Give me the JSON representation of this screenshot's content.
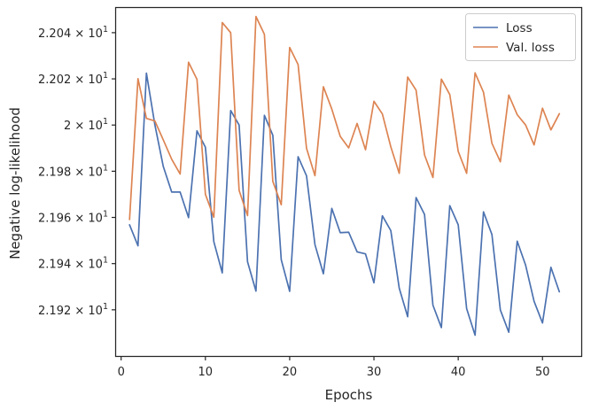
{
  "chart_data": {
    "type": "line",
    "xlabel": "Epochs",
    "ylabel": "Negative log-likelihood",
    "xlim": [
      -0.6,
      54.6
    ],
    "ylim": [
      21.9,
      22.0507
    ],
    "x_ticks": [
      0,
      10,
      20,
      30,
      40,
      50
    ],
    "x_tick_labels": [
      "0",
      "10",
      "20",
      "30",
      "40",
      "50"
    ],
    "y_ticks": [
      21.92,
      21.94,
      21.96,
      21.98,
      22.0,
      22.02,
      22.04
    ],
    "y_tick_labels": [
      {
        "mantissa": "2.192",
        "times": "×",
        "base": "10",
        "exponent": "1"
      },
      {
        "mantissa": "2.194",
        "times": "×",
        "base": "10",
        "exponent": "1"
      },
      {
        "mantissa": "2.196",
        "times": "×",
        "base": "10",
        "exponent": "1"
      },
      {
        "mantissa": "2.198",
        "times": "×",
        "base": "10",
        "exponent": "1"
      },
      {
        "mantissa": "2",
        "times": "×",
        "base": "10",
        "exponent": "1"
      },
      {
        "mantissa": "2.202",
        "times": "×",
        "base": "10",
        "exponent": "1"
      },
      {
        "mantissa": "2.204",
        "times": "×",
        "base": "10",
        "exponent": "1"
      }
    ],
    "legend_position": "top-right",
    "grid": false,
    "x": [
      1,
      2,
      3,
      4,
      5,
      6,
      7,
      8,
      9,
      10,
      11,
      12,
      13,
      14,
      15,
      16,
      17,
      18,
      19,
      20,
      21,
      22,
      23,
      24,
      25,
      26,
      27,
      28,
      29,
      30,
      31,
      32,
      33,
      34,
      35,
      36,
      37,
      38,
      39,
      40,
      41,
      42,
      43,
      44,
      45,
      46,
      47,
      48,
      49,
      50,
      51,
      52
    ],
    "series": [
      {
        "name": "Loss",
        "color": "#4c72b0",
        "values": [
          21.9568,
          21.9477,
          22.0225,
          22.0002,
          21.9821,
          21.971,
          21.971,
          21.9599,
          21.9975,
          21.9904,
          21.9495,
          21.936,
          22.0063,
          22.0,
          21.9408,
          21.9281,
          22.0042,
          21.9956,
          21.9417,
          21.928,
          21.9863,
          21.978,
          21.9482,
          21.9356,
          21.9639,
          21.9534,
          21.9536,
          21.9451,
          21.9442,
          21.9317,
          21.9607,
          21.9543,
          21.9294,
          21.917,
          21.9686,
          21.9613,
          21.922,
          21.9123,
          21.9651,
          21.9568,
          21.9205,
          21.909,
          21.9624,
          21.9526,
          21.9199,
          21.9103,
          21.9497,
          21.9393,
          21.9237,
          21.9143,
          21.9384,
          21.9278
        ]
      },
      {
        "name": "Val. loss",
        "color": "#dd8452",
        "values": [
          21.9591,
          22.0201,
          22.0029,
          22.0018,
          21.9936,
          21.9852,
          21.9788,
          22.0272,
          22.0198,
          21.97,
          21.9601,
          22.0444,
          22.04,
          21.9717,
          21.9608,
          22.047,
          22.0393,
          21.9756,
          21.9655,
          22.0336,
          22.0262,
          21.9899,
          21.9781,
          22.0166,
          22.0069,
          21.9951,
          21.9901,
          22.0007,
          21.9893,
          22.0103,
          22.0048,
          21.9906,
          21.9791,
          22.0208,
          22.0151,
          21.9871,
          21.9773,
          22.0199,
          22.0132,
          21.9886,
          21.9791,
          22.0226,
          22.0142,
          21.9921,
          21.9841,
          22.013,
          22.0045,
          22.0,
          21.9914,
          22.0073,
          21.9979,
          22.0049
        ]
      }
    ]
  }
}
